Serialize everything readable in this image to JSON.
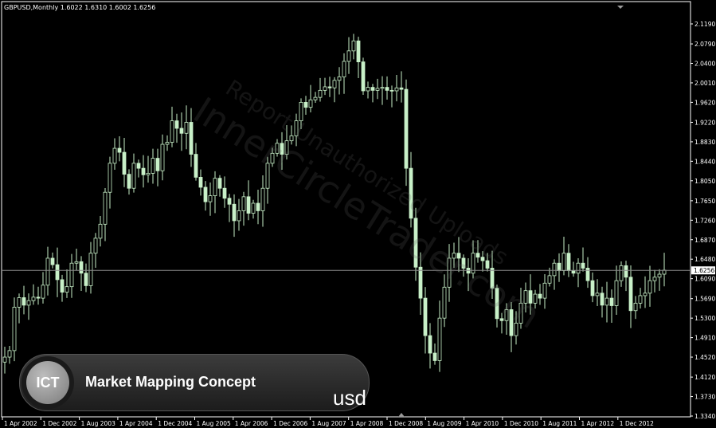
{
  "header": {
    "text": "GBPUSD,Monthly  1.6022 1.6310 1.6002 1.6256"
  },
  "watermark": {
    "line1": "Report Unauthorized Uploads",
    "line2": "InnerCircleTrader.com"
  },
  "banner": {
    "badge": "ICT",
    "title": "Market Mapping Concept"
  },
  "caption": "usd",
  "colors": {
    "candle": "#c8f0c8",
    "grid": "#ffffff",
    "background": "#000000"
  },
  "chart_data": {
    "type": "candlestick",
    "symbol": "GBPUSD",
    "timeframe": "Monthly",
    "ylim": [
      1.334,
      2.119
    ],
    "yticks": [
      2.119,
      2.079,
      2.04,
      2.001,
      1.962,
      1.922,
      1.883,
      1.844,
      1.805,
      1.765,
      1.726,
      1.687,
      1.648,
      1.609,
      1.569,
      1.53,
      1.491,
      1.452,
      1.412,
      1.373,
      1.334
    ],
    "xticks": [
      "1 Apr 2002",
      "1 Dec 2002",
      "1 Aug 2003",
      "1 Apr 2004",
      "1 Dec 2004",
      "1 Aug 2005",
      "1 Apr 2006",
      "1 Dec 2006",
      "1 Aug 2007",
      "1 Apr 2008",
      "1 Dec 2008",
      "1 Aug 2009",
      "1 Apr 2010",
      "1 Dec 2010",
      "1 Aug 2011",
      "1 Apr 2012",
      "1 Dec 2012"
    ],
    "current_price": "1.6256",
    "closes": [
      1.452,
      1.465,
      1.552,
      1.571,
      1.556,
      1.565,
      1.572,
      1.57,
      1.596,
      1.65,
      1.637,
      1.607,
      1.582,
      1.593,
      1.64,
      1.643,
      1.62,
      1.595,
      1.66,
      1.69,
      1.718,
      1.782,
      1.84,
      1.87,
      1.862,
      1.818,
      1.79,
      1.84,
      1.83,
      1.817,
      1.82,
      1.85,
      1.825,
      1.878,
      1.882,
      1.925,
      1.91,
      1.9,
      1.922,
      1.858,
      1.812,
      1.792,
      1.763,
      1.775,
      1.81,
      1.79,
      1.77,
      1.758,
      1.725,
      1.745,
      1.773,
      1.74,
      1.76,
      1.745,
      1.79,
      1.84,
      1.86,
      1.88,
      1.858,
      1.885,
      1.895,
      1.925,
      1.962,
      1.952,
      1.967,
      1.972,
      1.986,
      1.993,
      1.991,
      2.006,
      2.013,
      2.044,
      2.065,
      2.085,
      2.043,
      1.985,
      1.992,
      1.986,
      1.99,
      1.992,
      1.986,
      1.985,
      1.991,
      1.988,
      1.83,
      1.73,
      1.632,
      1.57,
      1.495,
      1.46,
      1.445,
      1.53,
      1.592,
      1.65,
      1.66,
      1.65,
      1.63,
      1.62,
      1.66,
      1.652,
      1.645,
      1.63,
      1.59,
      1.529,
      1.525,
      1.547,
      1.495,
      1.52,
      1.56,
      1.585,
      1.56,
      1.578,
      1.57,
      1.6,
      1.615,
      1.64,
      1.625,
      1.66,
      1.625,
      1.62,
      1.64,
      1.63,
      1.605,
      1.575,
      1.58,
      1.556,
      1.57,
      1.555,
      1.605,
      1.635,
      1.612,
      1.545,
      1.56,
      1.575,
      1.58,
      1.605,
      1.612,
      1.618,
      1.626
    ]
  }
}
